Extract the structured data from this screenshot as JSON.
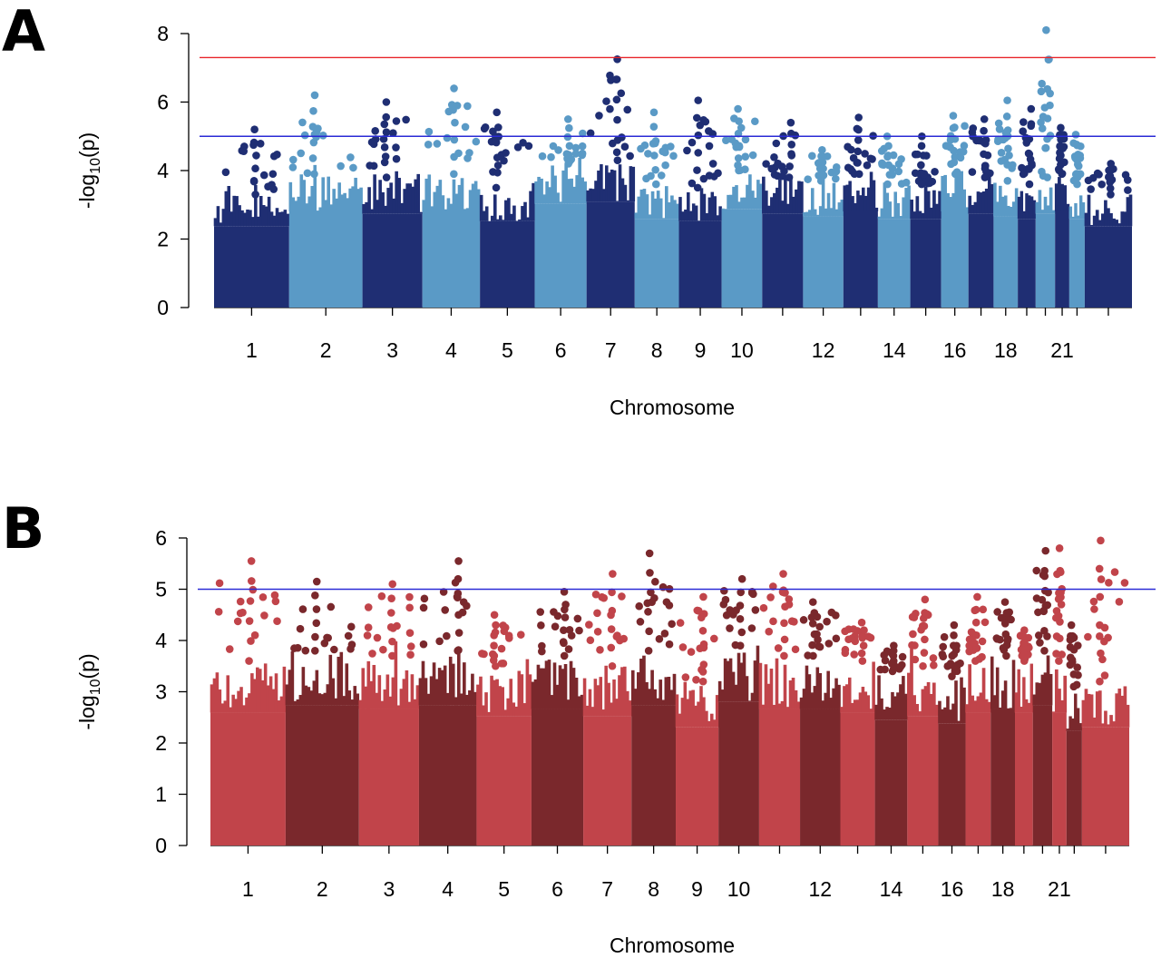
{
  "chart_data": [
    {
      "panel": "A",
      "type": "scatter",
      "subtype": "manhattan",
      "xlabel": "Chromosome",
      "ylabel_main": "-log",
      "ylabel_sub": "10",
      "ylabel_paren": "(p)",
      "ylim": [
        0,
        8
      ],
      "yticks": [
        "0",
        "2",
        "4",
        "6",
        "8"
      ],
      "x_tick_labels_shown": [
        "1",
        "2",
        "3",
        "4",
        "5",
        "6",
        "7",
        "8",
        "9",
        "10",
        "12",
        "14",
        "16",
        "18",
        "21"
      ],
      "colors": [
        "#1f2e73",
        "#5a9ac6"
      ],
      "thresholds": [
        {
          "value": 7.3,
          "color": "#e8262b"
        },
        {
          "value": 5.0,
          "color": "#2b2bd6"
        }
      ],
      "chromosomes": [
        {
          "chr": "1",
          "label": "1",
          "peak": 5.2,
          "base": 3.3
        },
        {
          "chr": "2",
          "label": "2",
          "peak": 6.2,
          "base": 3.9
        },
        {
          "chr": "3",
          "label": "3",
          "peak": 6.0,
          "base": 3.8
        },
        {
          "chr": "4",
          "label": "4",
          "peak": 6.4,
          "base": 3.9
        },
        {
          "chr": "5",
          "label": "5",
          "peak": 5.7,
          "base": 3.5
        },
        {
          "chr": "6",
          "label": "6",
          "peak": 5.5,
          "base": 4.2
        },
        {
          "chr": "7",
          "label": "7",
          "peak": 7.25,
          "base": 4.3
        },
        {
          "chr": "8",
          "label": "8",
          "peak": 5.7,
          "base": 3.6
        },
        {
          "chr": "9",
          "label": "9",
          "peak": 6.05,
          "base": 3.5
        },
        {
          "chr": "10",
          "label": "10",
          "peak": 5.8,
          "base": 4.0
        },
        {
          "chr": "11",
          "label": "",
          "peak": 5.4,
          "base": 3.8
        },
        {
          "chr": "12",
          "label": "12",
          "peak": 4.6,
          "base": 3.7
        },
        {
          "chr": "13",
          "label": "",
          "peak": 5.55,
          "base": 3.9
        },
        {
          "chr": "14",
          "label": "14",
          "peak": 5.0,
          "base": 3.6
        },
        {
          "chr": "15",
          "label": "",
          "peak": 5.0,
          "base": 3.6
        },
        {
          "chr": "16",
          "label": "16",
          "peak": 5.6,
          "base": 3.9
        },
        {
          "chr": "17",
          "label": "",
          "peak": 5.5,
          "base": 3.8
        },
        {
          "chr": "18",
          "label": "18",
          "peak": 6.05,
          "base": 3.7
        },
        {
          "chr": "19",
          "label": "",
          "peak": 5.8,
          "base": 3.6
        },
        {
          "chr": "20",
          "label": "",
          "peak": 8.1,
          "base": 3.8
        },
        {
          "chr": "21",
          "label": "21",
          "peak": 5.25,
          "base": 3.9
        },
        {
          "chr": "22",
          "label": "",
          "peak": 5.05,
          "base": 3.6
        },
        {
          "chr": "X",
          "label": "",
          "peak": 4.2,
          "base": 3.3
        }
      ]
    },
    {
      "panel": "B",
      "type": "scatter",
      "subtype": "manhattan",
      "xlabel": "Chromosome",
      "ylabel_main": "-log",
      "ylabel_sub": "10",
      "ylabel_paren": "(p)",
      "ylim": [
        0,
        6
      ],
      "yticks": [
        "0",
        "1",
        "2",
        "3",
        "4",
        "5",
        "6"
      ],
      "x_tick_labels_shown": [
        "1",
        "2",
        "3",
        "4",
        "5",
        "6",
        "7",
        "8",
        "9",
        "10",
        "12",
        "14",
        "16",
        "18",
        "21"
      ],
      "colors": [
        "#c1444a",
        "#7a282c"
      ],
      "thresholds": [
        {
          "value": 5.0,
          "color": "#2b2bd6"
        }
      ],
      "chromosomes": [
        {
          "chr": "1",
          "label": "1",
          "peak": 5.55,
          "base": 3.6
        },
        {
          "chr": "2",
          "label": "2",
          "peak": 5.15,
          "base": 3.8
        },
        {
          "chr": "3",
          "label": "3",
          "peak": 5.1,
          "base": 3.7
        },
        {
          "chr": "4",
          "label": "4",
          "peak": 5.55,
          "base": 3.8
        },
        {
          "chr": "5",
          "label": "5",
          "peak": 4.5,
          "base": 3.5
        },
        {
          "chr": "6",
          "label": "6",
          "peak": 4.95,
          "base": 3.7
        },
        {
          "chr": "7",
          "label": "7",
          "peak": 5.3,
          "base": 3.5
        },
        {
          "chr": "8",
          "label": "8",
          "peak": 5.7,
          "base": 3.8
        },
        {
          "chr": "9",
          "label": "9",
          "peak": 4.85,
          "base": 3.2
        },
        {
          "chr": "10",
          "label": "10",
          "peak": 5.2,
          "base": 3.9
        },
        {
          "chr": "11",
          "label": "",
          "peak": 5.3,
          "base": 3.7
        },
        {
          "chr": "12",
          "label": "12",
          "peak": 4.75,
          "base": 3.7
        },
        {
          "chr": "13",
          "label": "",
          "peak": 4.35,
          "base": 3.6
        },
        {
          "chr": "14",
          "label": "14",
          "peak": 3.9,
          "base": 3.4
        },
        {
          "chr": "15",
          "label": "",
          "peak": 4.8,
          "base": 3.5
        },
        {
          "chr": "16",
          "label": "16",
          "peak": 4.3,
          "base": 3.3
        },
        {
          "chr": "17",
          "label": "",
          "peak": 4.85,
          "base": 3.6
        },
        {
          "chr": "18",
          "label": "18",
          "peak": 4.75,
          "base": 3.7
        },
        {
          "chr": "19",
          "label": "",
          "peak": 4.2,
          "base": 3.6
        },
        {
          "chr": "20",
          "label": "",
          "peak": 5.75,
          "base": 3.8
        },
        {
          "chr": "21",
          "label": "21",
          "peak": 5.8,
          "base": 3.6
        },
        {
          "chr": "22",
          "label": "",
          "peak": 4.3,
          "base": 3.1
        },
        {
          "chr": "X",
          "label": "",
          "peak": 5.95,
          "base": 3.2
        }
      ]
    }
  ],
  "panels": {
    "A": {
      "letter": "A"
    },
    "B": {
      "letter": "B"
    }
  }
}
